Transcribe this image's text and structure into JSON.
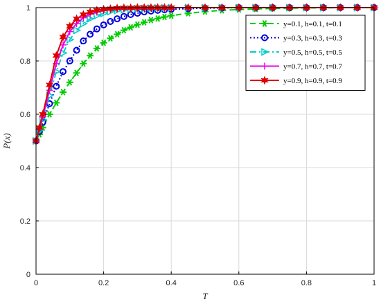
{
  "chart_data": {
    "type": "line",
    "xlabel": "T",
    "ylabel": "P(x)",
    "xlim": [
      0,
      1
    ],
    "ylim": [
      0,
      1
    ],
    "x_ticks": [
      "0",
      "0.2",
      "0.4",
      "0.6",
      "0.8",
      "1"
    ],
    "y_ticks": [
      "0",
      "0.2",
      "0.4",
      "0.6",
      "0.8",
      "1"
    ],
    "grid": true,
    "legend_position": "top-right",
    "x": [
      0,
      0.01,
      0.02,
      0.04,
      0.06,
      0.08,
      0.1,
      0.12,
      0.14,
      0.16,
      0.18,
      0.2,
      0.22,
      0.24,
      0.26,
      0.28,
      0.3,
      0.32,
      0.34,
      0.36,
      0.38,
      0.4,
      0.45,
      0.5,
      0.55,
      0.6,
      0.65,
      0.7,
      0.75,
      0.8,
      0.85,
      0.9,
      0.95,
      1.0
    ],
    "series": [
      {
        "name": "y=0.1, h=0.1, t=0.1",
        "color": "#00cc00",
        "dash": "8,5",
        "marker": "asterisk",
        "values": [
          0.5,
          0.525,
          0.55,
          0.6,
          0.643,
          0.683,
          0.72,
          0.755,
          0.79,
          0.82,
          0.847,
          0.868,
          0.885,
          0.9,
          0.915,
          0.926,
          0.936,
          0.945,
          0.953,
          0.959,
          0.965,
          0.97,
          0.979,
          0.985,
          0.99,
          0.993,
          0.995,
          0.997,
          0.998,
          0.999,
          0.999,
          1.0,
          1.0,
          1.0
        ]
      },
      {
        "name": "y=0.3, h=0.3, t=0.3",
        "color": "#0000dd",
        "dash": "2,3",
        "marker": "circle",
        "values": [
          0.5,
          0.535,
          0.57,
          0.64,
          0.705,
          0.76,
          0.8,
          0.84,
          0.875,
          0.9,
          0.92,
          0.935,
          0.948,
          0.958,
          0.967,
          0.974,
          0.979,
          0.984,
          0.987,
          0.99,
          0.992,
          0.994,
          0.996,
          0.998,
          0.999,
          1.0,
          1.0,
          1.0,
          1.0,
          1.0,
          1.0,
          1.0,
          1.0,
          1.0
        ]
      },
      {
        "name": "y=0.5, h=0.5, t=0.5",
        "color": "#00cccc",
        "dash": "9,4,2,4",
        "marker": "triangle-right",
        "values": [
          0.5,
          0.54,
          0.58,
          0.67,
          0.76,
          0.83,
          0.88,
          0.915,
          0.94,
          0.958,
          0.97,
          0.978,
          0.985,
          0.989,
          0.992,
          0.994,
          0.996,
          0.997,
          0.998,
          0.999,
          0.999,
          1.0,
          1.0,
          1.0,
          1.0,
          1.0,
          1.0,
          1.0,
          1.0,
          1.0,
          1.0,
          1.0,
          1.0,
          1.0
        ]
      },
      {
        "name": "y=0.7, h=0.7, t=0.7",
        "color": "#ee00ee",
        "dash": "",
        "marker": "plus",
        "values": [
          0.5,
          0.545,
          0.59,
          0.69,
          0.79,
          0.86,
          0.91,
          0.94,
          0.962,
          0.975,
          0.983,
          0.989,
          0.993,
          0.995,
          0.997,
          0.998,
          0.999,
          0.999,
          1.0,
          1.0,
          1.0,
          1.0,
          1.0,
          1.0,
          1.0,
          1.0,
          1.0,
          1.0,
          1.0,
          1.0,
          1.0,
          1.0,
          1.0,
          1.0
        ]
      },
      {
        "name": "y=0.9, h=0.9, t=0.9",
        "color": "#dd0000",
        "dash": "",
        "marker": "star",
        "values": [
          0.5,
          0.55,
          0.6,
          0.71,
          0.82,
          0.89,
          0.93,
          0.958,
          0.974,
          0.984,
          0.99,
          0.994,
          0.996,
          0.998,
          0.999,
          0.999,
          1.0,
          1.0,
          1.0,
          1.0,
          1.0,
          1.0,
          1.0,
          1.0,
          1.0,
          1.0,
          1.0,
          1.0,
          1.0,
          1.0,
          1.0,
          1.0,
          1.0,
          1.0
        ]
      }
    ]
  }
}
